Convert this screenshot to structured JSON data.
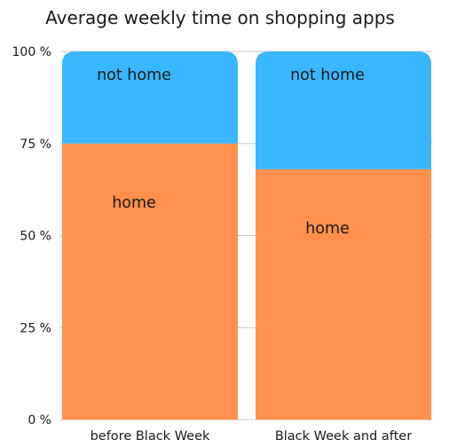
{
  "chart_data": {
    "type": "bar",
    "stacked": true,
    "title": "Average weekly time on shopping apps",
    "categories": [
      "before Black Week",
      "Black Week and after"
    ],
    "series": [
      {
        "name": "home",
        "values": [
          75,
          68
        ],
        "color": "#ff914d"
      },
      {
        "name": "not home",
        "values": [
          25,
          32
        ],
        "color": "#38b6ff"
      }
    ],
    "ylim": [
      0,
      100
    ],
    "yticks": [
      "0 %",
      "25 %",
      "50 %",
      "75 %",
      "100 %"
    ],
    "grid": true
  }
}
